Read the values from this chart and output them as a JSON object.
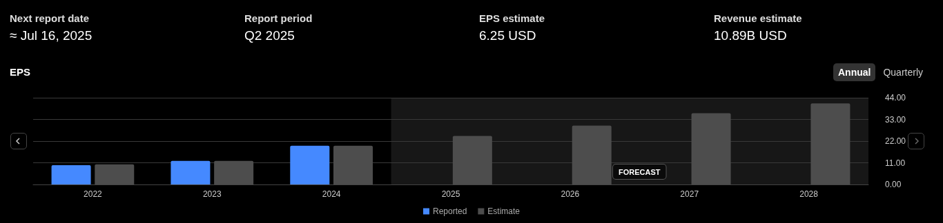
{
  "chart_data": {
    "type": "bar",
    "title": "EPS",
    "categories": [
      "2022",
      "2023",
      "2024",
      "2025",
      "2026",
      "2027",
      "2028"
    ],
    "series": [
      {
        "name": "Reported",
        "color": "#4589ff",
        "values": [
          9.8,
          12.0,
          19.6,
          null,
          null,
          null,
          null
        ]
      },
      {
        "name": "Estimate",
        "color": "#4d4d4d",
        "values": [
          10.2,
          12.0,
          19.6,
          24.6,
          29.9,
          36.1,
          41.1
        ]
      }
    ],
    "ylim": [
      0,
      44
    ],
    "yticks": [
      {
        "value": 0,
        "label": "0.00"
      },
      {
        "value": 11,
        "label": "11.00"
      },
      {
        "value": 22,
        "label": "22.00"
      },
      {
        "value": 33,
        "label": "33.00"
      },
      {
        "value": 44,
        "label": "44.00"
      }
    ],
    "grid": "y",
    "legend": "bottom",
    "bands": [
      {
        "axis": "x",
        "from": "2025",
        "to": "2028",
        "label": "FORECAST",
        "color": "#3a3a3a"
      }
    ],
    "annotations": [
      "Next report date",
      "≈ Jul 16, 2025",
      "Report period",
      "Q2 2025",
      "EPS estimate",
      "6.25 USD",
      "Revenue estimate",
      "10.89B USD",
      "Annual",
      "Quarterly"
    ]
  }
}
